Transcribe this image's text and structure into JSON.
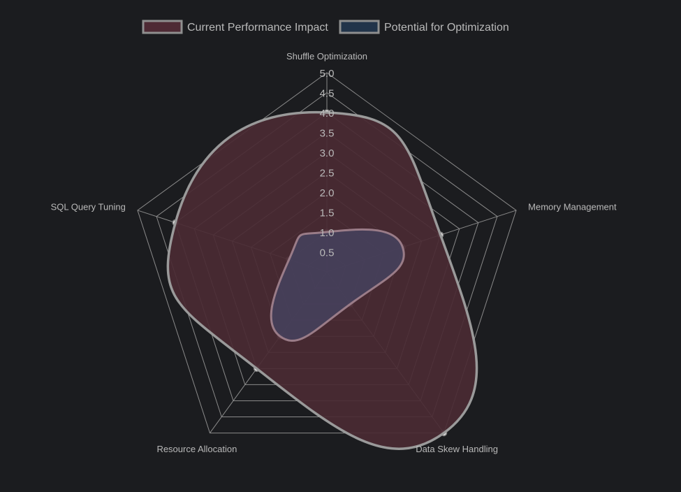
{
  "colors": {
    "background": "#1b1c1f",
    "grid": "#8a8a8a",
    "label": "#b9b9b9",
    "series1_fill": "#4a2a33",
    "series1_stroke": "#9a9a9a",
    "series2_fill": "#45425e",
    "series2_stroke": "#9a7c88",
    "point_fill": "#d9c8cf",
    "point_stroke": "#9a9a9a"
  },
  "chart_data": {
    "type": "radar",
    "legend": {
      "position": "top",
      "items": [
        {
          "label": "Current Performance Impact",
          "swatch_color": "#4e2a34",
          "swatch_border": "#8f8f8f"
        },
        {
          "label": "Potential for Optimization",
          "swatch_color": "#22344a",
          "swatch_border": "#8f8f8f"
        }
      ]
    },
    "axes": [
      "Shuffle Optimization",
      "Memory Management",
      "Data Skew Handling",
      "Resource Allocation",
      "SQL Query Tuning"
    ],
    "r_range": [
      0,
      5
    ],
    "r_ticks": [
      "0.5",
      "1.0",
      "1.5",
      "2.0",
      "2.5",
      "3.0",
      "3.5",
      "4.0",
      "4.5",
      "5.0"
    ],
    "grid": true,
    "series": [
      {
        "name": "Current Performance Impact",
        "values": [
          4.0,
          3.0,
          5.0,
          3.0,
          4.0
        ]
      },
      {
        "name": "Potential for Optimization",
        "values": [
          1.0,
          2.0,
          1.0,
          2.0,
          1.0
        ]
      }
    ]
  }
}
